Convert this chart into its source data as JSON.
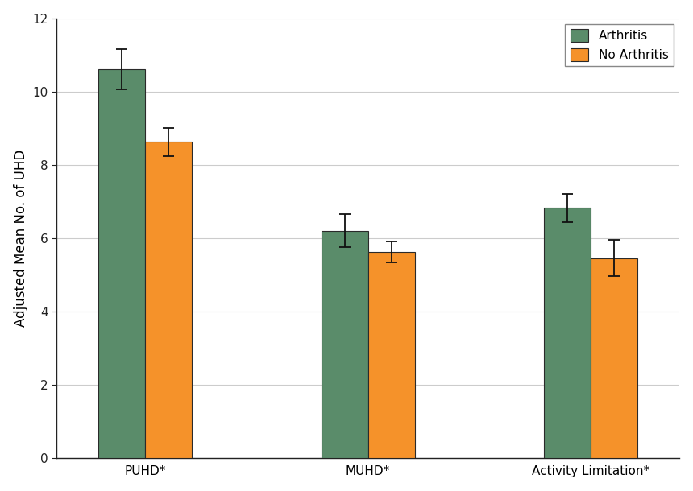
{
  "categories": [
    "PUHD*",
    "MUHD*",
    "Activity Limitation*"
  ],
  "arthritis_values": [
    10.6,
    6.2,
    6.82
  ],
  "no_arthritis_values": [
    8.62,
    5.62,
    5.45
  ],
  "arthritis_errors": [
    0.55,
    0.45,
    0.38
  ],
  "no_arthritis_errors": [
    0.38,
    0.28,
    0.5
  ],
  "arthritis_color": "#5a8c6a",
  "no_arthritis_color": "#f5922a",
  "ylabel": "Adjusted Mean No. of UHD",
  "ylim": [
    0,
    12
  ],
  "yticks": [
    0,
    2,
    4,
    6,
    8,
    10,
    12
  ],
  "legend_labels": [
    "Arthritis",
    "No Arthritis"
  ],
  "bar_width": 0.42,
  "background_color": "#ffffff",
  "grid_color": "#cccccc",
  "label_fontsize": 12,
  "tick_fontsize": 11
}
